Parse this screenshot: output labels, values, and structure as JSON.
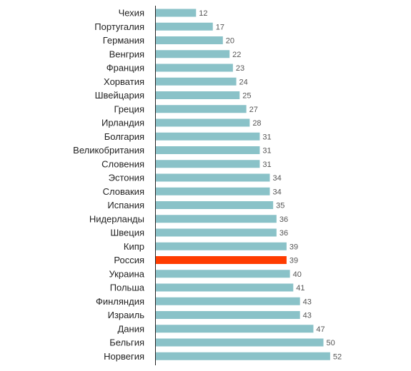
{
  "chart_data": {
    "type": "bar",
    "orientation": "horizontal",
    "categories": [
      "Чехия",
      "Португалия",
      "Германия",
      "Венгрия",
      "Франция",
      "Хорватия",
      "Швейцария",
      "Греция",
      "Ирландия",
      "Болгария",
      "Великобритания",
      "Словения",
      "Эстония",
      "Словакия",
      "Испания",
      "Нидерланды",
      "Швеция",
      "Кипр",
      "Россия",
      "Украина",
      "Польша",
      "Финляндия",
      "Израиль",
      "Дания",
      "Бельгия",
      "Норвегия"
    ],
    "values": [
      12,
      17,
      20,
      22,
      23,
      24,
      25,
      27,
      28,
      31,
      31,
      31,
      34,
      34,
      35,
      36,
      36,
      39,
      39,
      40,
      41,
      43,
      43,
      47,
      50,
      52
    ],
    "highlight_index": 18,
    "colors": {
      "bar": "#8ac2c8",
      "highlight_bar": "#ff3c00",
      "highlight_label": "#ff3c00",
      "label": "#222222",
      "value_label": "#555555",
      "axis": "#222222"
    },
    "xlim": [
      0,
      60
    ],
    "title": "",
    "xlabel": "",
    "ylabel": "",
    "grid": false,
    "legend": "none"
  }
}
